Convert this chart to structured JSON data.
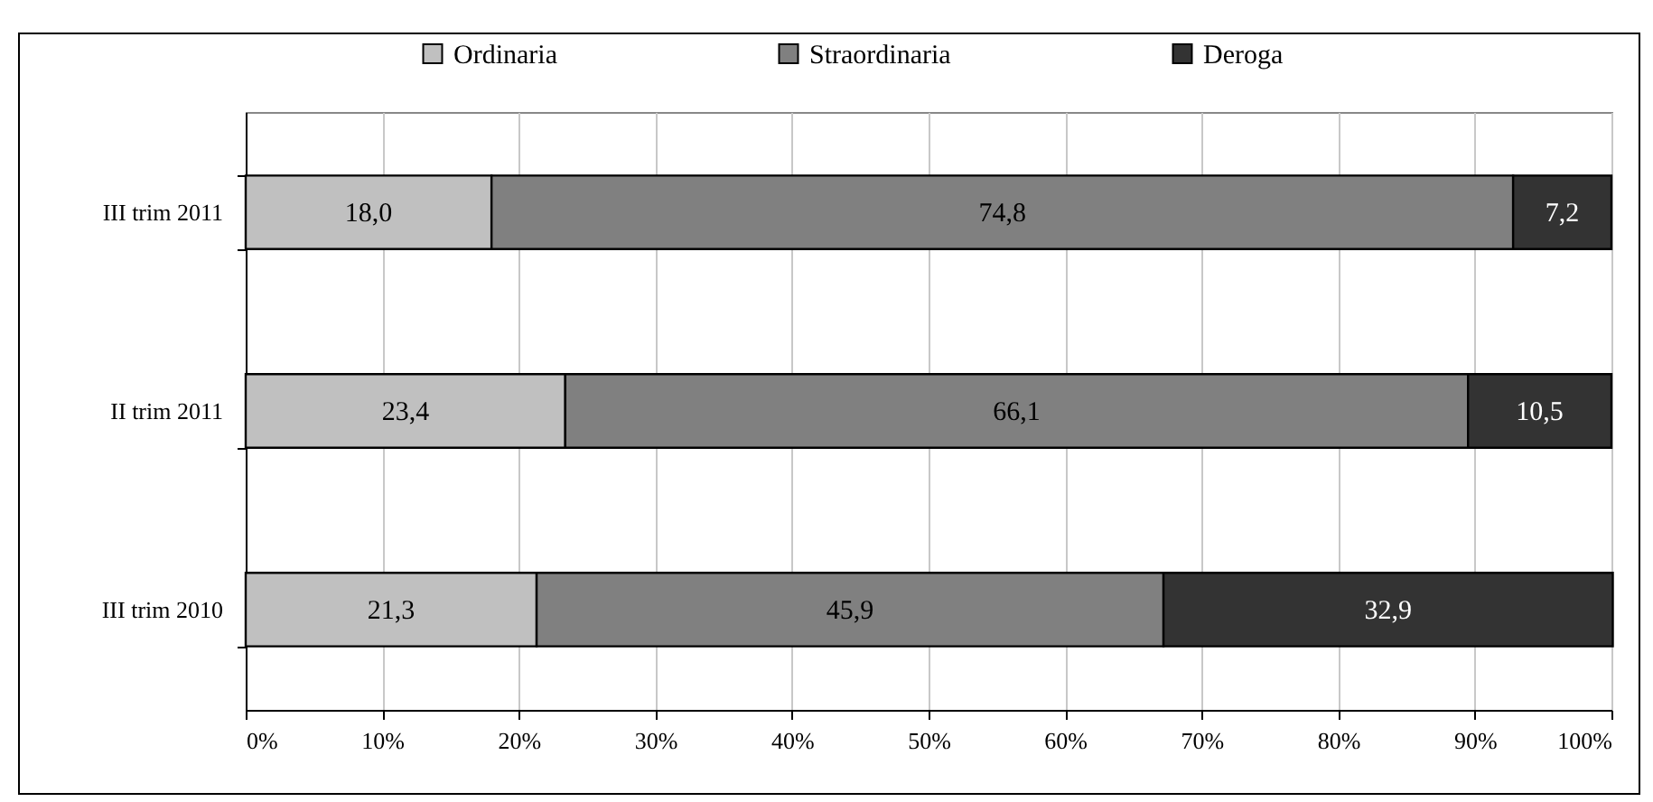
{
  "chart_data": {
    "type": "bar",
    "orientation": "horizontal",
    "stacked": true,
    "categories": [
      "III trim 2011",
      "II trim 2011",
      "III trim 2010"
    ],
    "series": [
      {
        "name": "Ordinaria",
        "color": "#c0c0c0",
        "values": [
          18.0,
          23.4,
          21.3
        ],
        "value_labels": [
          "18,0",
          "23,4",
          "21,3"
        ]
      },
      {
        "name": "Straordinaria",
        "color": "#808080",
        "values": [
          74.8,
          66.1,
          45.9
        ],
        "value_labels": [
          "74,8",
          "66,1",
          "45,9"
        ]
      },
      {
        "name": "Deroga",
        "color": "#333333",
        "values": [
          7.2,
          10.5,
          32.9
        ],
        "value_labels": [
          "7,2",
          "10,5",
          "32,9"
        ]
      }
    ],
    "xlim": [
      0,
      100
    ],
    "xticks": [
      {
        "value": 0,
        "label": "0%"
      },
      {
        "value": 10,
        "label": "10%"
      },
      {
        "value": 20,
        "label": "20%"
      },
      {
        "value": 30,
        "label": "30%"
      },
      {
        "value": 40,
        "label": "40%"
      },
      {
        "value": 50,
        "label": "50%"
      },
      {
        "value": 60,
        "label": "60%"
      },
      {
        "value": 70,
        "label": "70%"
      },
      {
        "value": 80,
        "label": "80%"
      },
      {
        "value": 90,
        "label": "90%"
      },
      {
        "value": 100,
        "label": "100%"
      }
    ],
    "grid": "x",
    "legend": "top"
  }
}
